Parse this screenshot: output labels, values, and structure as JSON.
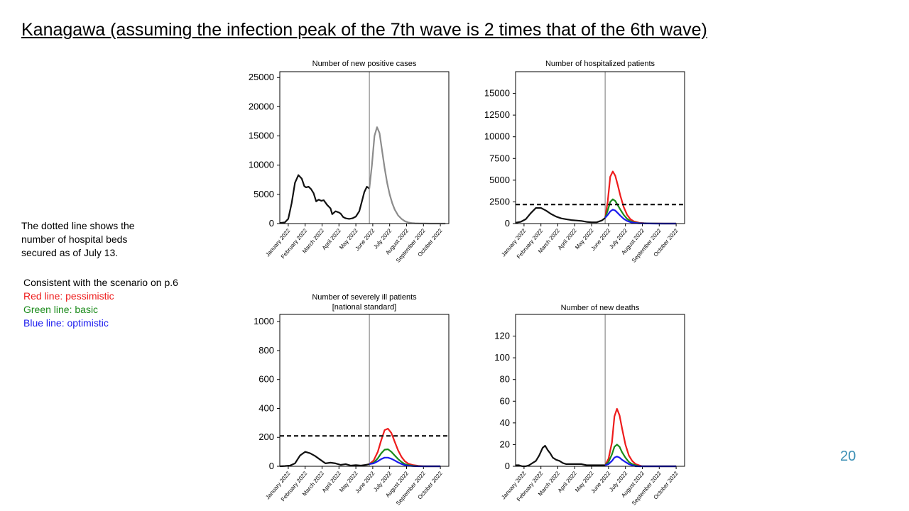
{
  "slide": {
    "title": "Kanagawa (assuming the infection peak of the 7th wave is 2 times that of the 6th wave)",
    "note_lines": [
      "The dotted line shows the",
      "number of hospital beds",
      "secured as of July 13."
    ],
    "legend_intro": "Consistent with the scenario on p.6",
    "legend_red": "Red line: pessimistic",
    "legend_green": "Green line: basic",
    "legend_blue": "Blue line: optimistic",
    "page_number": "20"
  },
  "colors": {
    "red": "#ee1c1c",
    "green": "#1a8a1a",
    "blue": "#1a1aee",
    "gray": "#8c8c8c",
    "black": "#111111",
    "page_number": "#3b8fb5"
  },
  "chart_data": [
    {
      "type": "line",
      "title": "Number of new positive cases",
      "ylim": [
        0,
        26000
      ],
      "yticks": [
        0,
        5000,
        10000,
        15000,
        20000,
        25000
      ],
      "xlim": [
        0,
        10
      ],
      "xtick_labels": [
        "January 2022",
        "February 2022",
        "March 2022",
        "April 2022",
        "May 2022",
        "June 2022",
        "July 2022",
        "August 2022",
        "September 2022",
        "October 2022"
      ],
      "vline_x": 5.3,
      "series": [
        {
          "color": "black",
          "x": [
            0,
            0.3,
            0.5,
            0.7,
            0.9,
            1.1,
            1.3,
            1.45,
            1.55,
            1.7,
            1.85,
            2.0,
            2.15,
            2.3,
            2.45,
            2.6,
            2.8,
            3.0,
            3.1,
            3.3,
            3.5,
            3.6,
            3.75,
            3.9,
            4.1,
            4.3,
            4.5,
            4.7,
            4.85,
            5.0,
            5.15,
            5.3
          ],
          "y": [
            100,
            200,
            800,
            3500,
            7000,
            8300,
            7700,
            6400,
            6200,
            6300,
            5900,
            5200,
            3800,
            4100,
            3900,
            4000,
            3200,
            2600,
            1600,
            2100,
            1900,
            1700,
            1100,
            900,
            800,
            900,
            1200,
            2100,
            3700,
            5400,
            6300,
            6000
          ]
        },
        {
          "color": "gray",
          "x": [
            5.3,
            5.45,
            5.6,
            5.75,
            5.9,
            6.05,
            6.2,
            6.35,
            6.5,
            6.65,
            6.8,
            7.0,
            7.2,
            7.4,
            7.6,
            7.8,
            8.0,
            8.3,
            8.6,
            8.9,
            9.2,
            9.5,
            9.8
          ],
          "y": [
            6000,
            10000,
            15000,
            16500,
            15500,
            12500,
            9500,
            7000,
            5000,
            3500,
            2400,
            1400,
            800,
            400,
            200,
            100,
            50,
            20,
            10,
            5,
            0,
            0,
            0
          ]
        }
      ]
    },
    {
      "type": "line",
      "title": "Number of hospitalized patients",
      "ylim": [
        0,
        17500
      ],
      "yticks": [
        0,
        2500,
        5000,
        7500,
        10000,
        12500,
        15000
      ],
      "xlim": [
        0,
        10
      ],
      "xtick_labels": [
        "January 2022",
        "February 2022",
        "March 2022",
        "April 2022",
        "May 2022",
        "June 2022",
        "July 2022",
        "August 2022",
        "September 2022",
        "October 2022"
      ],
      "vline_x": 5.3,
      "hline_y": 2200,
      "series": [
        {
          "color": "black",
          "x": [
            0,
            0.3,
            0.6,
            0.9,
            1.2,
            1.5,
            1.8,
            2.1,
            2.4,
            2.7,
            3.0,
            3.3,
            3.6,
            3.9,
            4.2,
            4.5,
            4.8,
            5.1,
            5.3
          ],
          "y": [
            100,
            200,
            500,
            1200,
            1800,
            1800,
            1500,
            1100,
            800,
            600,
            500,
            400,
            350,
            300,
            200,
            150,
            150,
            350,
            650
          ]
        },
        {
          "color": "red",
          "x": [
            5.3,
            5.45,
            5.6,
            5.75,
            5.9,
            6.05,
            6.2,
            6.4,
            6.6,
            6.8,
            7.0,
            7.3,
            7.6,
            7.9,
            8.2,
            8.5,
            8.8,
            9.1,
            9.5
          ],
          "y": [
            650,
            2500,
            5400,
            6000,
            5500,
            4400,
            3200,
            1900,
            1000,
            500,
            250,
            100,
            50,
            20,
            10,
            5,
            0,
            0,
            0
          ]
        },
        {
          "color": "green",
          "x": [
            5.3,
            5.45,
            5.6,
            5.75,
            5.9,
            6.05,
            6.2,
            6.4,
            6.6,
            6.8,
            7.0,
            7.3,
            7.6,
            7.9,
            8.2,
            8.5,
            8.8,
            9.1,
            9.5
          ],
          "y": [
            650,
            1500,
            2500,
            2800,
            2600,
            2100,
            1600,
            1000,
            550,
            280,
            140,
            60,
            30,
            15,
            5,
            0,
            0,
            0,
            0
          ]
        },
        {
          "color": "blue",
          "x": [
            5.3,
            5.45,
            5.6,
            5.75,
            5.9,
            6.05,
            6.2,
            6.4,
            6.6,
            6.8,
            7.0,
            7.3,
            7.6,
            7.9,
            8.2,
            8.5,
            8.8,
            9.1,
            9.5
          ],
          "y": [
            650,
            1000,
            1400,
            1600,
            1500,
            1200,
            900,
            550,
            300,
            160,
            80,
            35,
            15,
            5,
            0,
            0,
            0,
            0,
            0
          ]
        }
      ]
    },
    {
      "type": "line",
      "title": "Number of severely ill patients",
      "subtitle": "[national standard]",
      "ylim": [
        0,
        1050
      ],
      "yticks": [
        0,
        200,
        400,
        600,
        800,
        1000
      ],
      "xlim": [
        0,
        10
      ],
      "xtick_labels": [
        "January 2022",
        "February 2022",
        "March 2022",
        "April 2022",
        "May 2022",
        "June 2022",
        "July 2022",
        "August 2022",
        "September 2022",
        "October 2022"
      ],
      "vline_x": 5.3,
      "hline_y": 210,
      "series": [
        {
          "color": "black",
          "x": [
            0,
            0.3,
            0.6,
            0.9,
            1.2,
            1.5,
            1.8,
            2.1,
            2.4,
            2.7,
            3.0,
            3.3,
            3.6,
            3.9,
            4.2,
            4.5,
            4.8,
            5.1,
            5.3
          ],
          "y": [
            0,
            2,
            5,
            20,
            75,
            100,
            90,
            70,
            45,
            20,
            25,
            20,
            10,
            15,
            5,
            8,
            5,
            10,
            15
          ]
        },
        {
          "color": "red",
          "x": [
            5.3,
            5.55,
            5.8,
            6.0,
            6.2,
            6.4,
            6.6,
            6.8,
            7.0,
            7.2,
            7.4,
            7.6,
            7.9,
            8.2,
            8.5,
            8.8,
            9.1,
            9.5
          ],
          "y": [
            15,
            40,
            100,
            180,
            250,
            260,
            230,
            170,
            110,
            65,
            35,
            18,
            8,
            3,
            0,
            0,
            0,
            0
          ]
        },
        {
          "color": "green",
          "x": [
            5.3,
            5.55,
            5.8,
            6.0,
            6.2,
            6.4,
            6.6,
            6.8,
            7.0,
            7.2,
            7.4,
            7.6,
            7.9,
            8.2,
            8.5,
            8.8,
            9.1,
            9.5
          ],
          "y": [
            15,
            25,
            55,
            90,
            115,
            118,
            100,
            75,
            50,
            30,
            15,
            8,
            3,
            1,
            0,
            0,
            0,
            0
          ]
        },
        {
          "color": "blue",
          "x": [
            5.3,
            5.55,
            5.8,
            6.0,
            6.2,
            6.4,
            6.6,
            6.8,
            7.0,
            7.2,
            7.4,
            7.6,
            7.9,
            8.2,
            8.5,
            8.8,
            9.1,
            9.5
          ],
          "y": [
            15,
            20,
            35,
            50,
            60,
            60,
            52,
            40,
            27,
            16,
            8,
            4,
            1,
            0,
            0,
            0,
            0,
            0
          ]
        }
      ]
    },
    {
      "type": "line",
      "title": "Number of new deaths",
      "ylim": [
        0,
        140
      ],
      "yticks": [
        0,
        20,
        40,
        60,
        80,
        100,
        120
      ],
      "xlim": [
        0,
        10
      ],
      "xtick_labels": [
        "January 2022",
        "February 2022",
        "March 2022",
        "April 2022",
        "May 2022",
        "June 2022",
        "July 2022",
        "August 2022",
        "September 2022",
        "October 2022"
      ],
      "vline_x": 5.3,
      "series": [
        {
          "color": "black",
          "x": [
            0,
            0.2,
            0.4,
            0.6,
            0.8,
            1.0,
            1.2,
            1.4,
            1.6,
            1.75,
            1.9,
            2.05,
            2.2,
            2.4,
            2.6,
            2.8,
            3.0,
            3.3,
            3.6,
            3.9,
            4.2,
            4.5,
            4.8,
            5.1,
            5.3
          ],
          "y": [
            1,
            1,
            0,
            0,
            1,
            3,
            5,
            10,
            17,
            19,
            15,
            12,
            8,
            6,
            5,
            3,
            2,
            2,
            2,
            2,
            1,
            1,
            1,
            1,
            1
          ]
        },
        {
          "color": "red",
          "x": [
            5.3,
            5.5,
            5.7,
            5.85,
            6.0,
            6.15,
            6.3,
            6.5,
            6.7,
            6.9,
            7.1,
            7.3,
            7.5,
            7.7,
            8.0,
            8.3,
            8.6,
            9.0,
            9.5
          ],
          "y": [
            1,
            7,
            22,
            46,
            53,
            47,
            35,
            20,
            10,
            5,
            2,
            1,
            0,
            0,
            0,
            0,
            0,
            0,
            0
          ]
        },
        {
          "color": "green",
          "x": [
            5.3,
            5.5,
            5.7,
            5.85,
            6.0,
            6.15,
            6.3,
            6.5,
            6.7,
            6.9,
            7.1,
            7.3,
            7.5,
            7.7,
            8.0,
            8.3,
            8.6,
            9.0,
            9.5
          ],
          "y": [
            1,
            4,
            11,
            18,
            20,
            18,
            13,
            8,
            4,
            2,
            1,
            0,
            0,
            0,
            0,
            0,
            0,
            0,
            0
          ]
        },
        {
          "color": "blue",
          "x": [
            5.3,
            5.5,
            5.7,
            5.85,
            6.0,
            6.15,
            6.3,
            6.5,
            6.7,
            6.9,
            7.1,
            7.3,
            7.5,
            7.7,
            8.0,
            8.3,
            8.6,
            9.0,
            9.5
          ],
          "y": [
            1,
            2,
            5,
            8,
            9,
            8,
            6,
            4,
            2,
            1,
            0,
            0,
            0,
            0,
            0,
            0,
            0,
            0,
            0
          ]
        }
      ]
    }
  ]
}
